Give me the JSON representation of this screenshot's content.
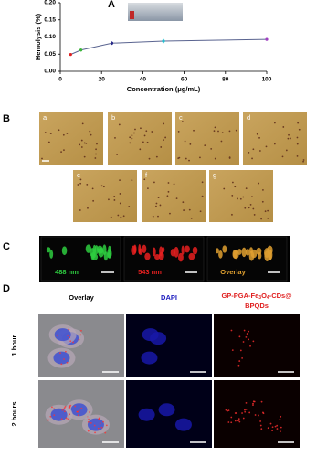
{
  "chart_data": {
    "type": "line",
    "label": "A",
    "xlabel": "Concentration (μg/mL)",
    "ylabel": "Hemolysis (%)",
    "x": [
      5,
      10,
      25,
      50,
      100
    ],
    "series": [
      {
        "color": "#5a6490",
        "values": [
          0.049,
          0.062,
          0.082,
          0.088,
          0.093
        ],
        "errors": [
          0.003,
          0.004,
          0.005,
          0.006,
          0.004
        ],
        "point_colors": [
          "#e02020",
          "#3cb43c",
          "#2a2a8a",
          "#20c0d0",
          "#a040c0"
        ]
      }
    ],
    "xlim": [
      0,
      100
    ],
    "xticks": [
      0,
      20,
      40,
      60,
      80,
      100
    ],
    "ylim": [
      0,
      0.2
    ],
    "yticks": [
      {
        "value": 0,
        "label": "0.00"
      },
      {
        "value": 0.05,
        "label": "0.05"
      },
      {
        "value": 0.1,
        "label": "0.10"
      },
      {
        "value": 0.15,
        "label": "0.15"
      },
      {
        "value": 0.2,
        "label": "0.20"
      }
    ]
  },
  "panel_b": {
    "label": "B",
    "images": [
      "a",
      "b",
      "c",
      "d",
      "e",
      "f",
      "g"
    ]
  },
  "panel_c": {
    "label": "C",
    "channels": [
      "488 nm",
      "543 nm",
      "Overlay"
    ]
  },
  "panel_d": {
    "label": "D",
    "columns": [
      "Overlay",
      "DAPI"
    ],
    "probe_title": {
      "line1": [
        "GP-PGA-Fe",
        "3",
        "O",
        "4",
        "-CDs@"
      ],
      "line2": "BPQDs"
    },
    "rows": [
      "1 hour",
      "2 hours"
    ]
  }
}
